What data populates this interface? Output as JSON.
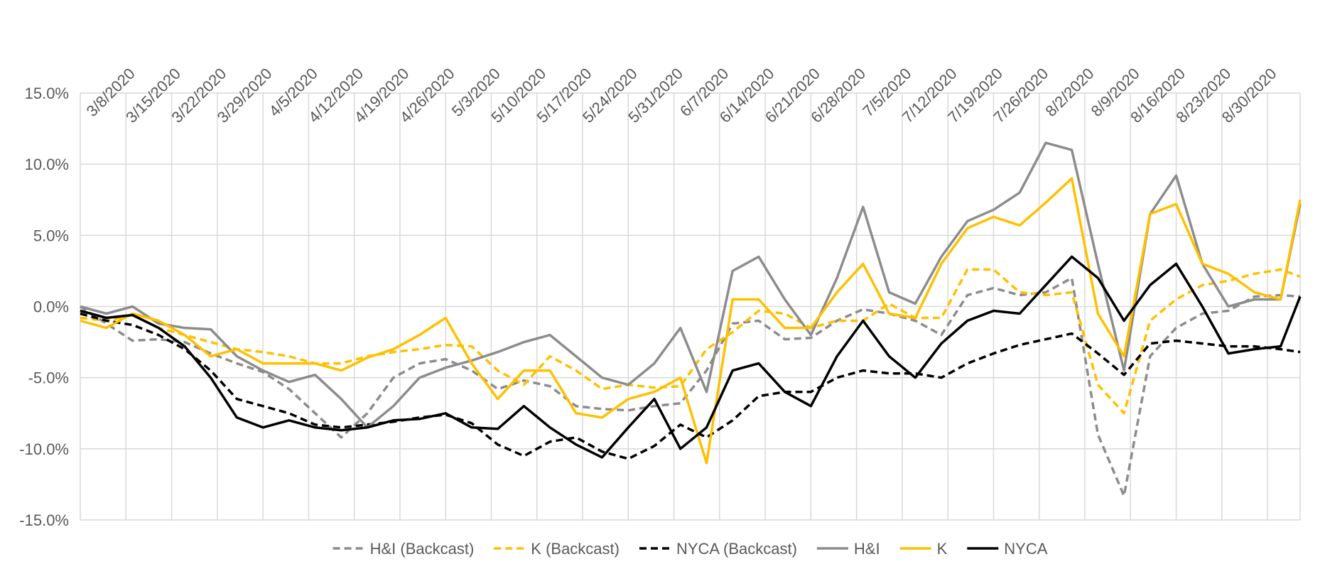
{
  "chart_data": {
    "type": "line",
    "x": [
      "3/1/2020",
      "3/5/2020",
      "3/9/2020",
      "3/13/2020",
      "3/17/2020",
      "3/21/2020",
      "3/25/2020",
      "3/29/2020",
      "4/2/2020",
      "4/6/2020",
      "4/10/2020",
      "4/14/2020",
      "4/18/2020",
      "4/22/2020",
      "4/26/2020",
      "4/30/2020",
      "5/4/2020",
      "5/8/2020",
      "5/12/2020",
      "5/16/2020",
      "5/20/2020",
      "5/24/2020",
      "5/28/2020",
      "6/1/2020",
      "6/5/2020",
      "6/9/2020",
      "6/13/2020",
      "6/17/2020",
      "6/21/2020",
      "6/25/2020",
      "6/29/2020",
      "7/3/2020",
      "7/7/2020",
      "7/11/2020",
      "7/15/2020",
      "7/19/2020",
      "7/23/2020",
      "7/27/2020",
      "7/31/2020",
      "8/4/2020",
      "8/8/2020",
      "8/12/2020",
      "8/16/2020",
      "8/20/2020",
      "8/24/2020",
      "8/28/2020",
      "9/1/2020",
      "9/4/2020"
    ],
    "xlim": [
      "3/1/2020",
      "9/4/2020"
    ],
    "xticks": [
      "3/8/2020",
      "3/15/2020",
      "3/22/2020",
      "3/29/2020",
      "4/5/2020",
      "4/12/2020",
      "4/19/2020",
      "4/26/2020",
      "5/3/2020",
      "5/10/2020",
      "5/17/2020",
      "5/24/2020",
      "5/31/2020",
      "6/7/2020",
      "6/14/2020",
      "6/21/2020",
      "6/28/2020",
      "7/5/2020",
      "7/12/2020",
      "7/19/2020",
      "7/26/2020",
      "8/2/2020",
      "8/9/2020",
      "8/16/2020",
      "8/23/2020",
      "8/30/2020"
    ],
    "ylim": [
      -15,
      15
    ],
    "yticks": [
      {
        "value": -15,
        "label": "-15.0%"
      },
      {
        "value": -10,
        "label": "-10.0%"
      },
      {
        "value": -5,
        "label": "-5.0%"
      },
      {
        "value": 0,
        "label": "0.0%"
      },
      {
        "value": 5,
        "label": "5.0%"
      },
      {
        "value": 10,
        "label": "10.0%"
      },
      {
        "value": 15,
        "label": "15.0%"
      }
    ],
    "grid": true,
    "legend": "bottom",
    "series": [
      {
        "name": "H&I (Backcast)",
        "color": "#8c8c8c",
        "dashed": true,
        "values": [
          0,
          -1.2,
          -2.4,
          -2.3,
          -2.5,
          -3.3,
          -4.0,
          -4.6,
          -5.8,
          -7.5,
          -9.2,
          -7.5,
          -5.0,
          -4.0,
          -3.7,
          -4.5,
          -5.8,
          -5.2,
          -5.6,
          -7.0,
          -7.2,
          -7.3,
          -7.0,
          -6.8,
          -4.5,
          -1.2,
          -1.0,
          -2.3,
          -2.2,
          -1.0,
          -0.2,
          -0.5,
          -1.0,
          -2.0,
          0.8,
          1.3,
          0.8,
          1.0,
          2.0,
          -9.0,
          -13.3,
          -3.5,
          -1.5,
          -0.5,
          -0.3,
          0.7,
          0.8,
          0.7
        ]
      },
      {
        "name": "K (Backcast)",
        "color": "#ffc000",
        "dashed": true,
        "values": [
          -0.8,
          -1.0,
          -0.6,
          -1.5,
          -2.0,
          -2.5,
          -3.0,
          -3.2,
          -3.5,
          -4.0,
          -4.0,
          -3.5,
          -3.2,
          -3.0,
          -2.7,
          -2.8,
          -4.5,
          -5.5,
          -3.5,
          -4.5,
          -5.8,
          -5.5,
          -5.7,
          -5.6,
          -3.0,
          -1.8,
          -0.3,
          -0.5,
          -1.5,
          -1.0,
          -1.0,
          0.2,
          -0.8,
          -0.8,
          2.6,
          2.6,
          1.0,
          0.8,
          1.0,
          -5.5,
          -7.5,
          -1.0,
          0.5,
          1.5,
          1.8,
          2.3,
          2.6,
          2.1
        ]
      },
      {
        "name": "NYCA (Backcast)",
        "color": "#000000",
        "dashed": true,
        "values": [
          -0.5,
          -1.0,
          -1.3,
          -2.0,
          -3.0,
          -4.5,
          -6.5,
          -7.0,
          -7.5,
          -8.3,
          -8.5,
          -8.3,
          -8.1,
          -7.8,
          -7.6,
          -8.2,
          -9.7,
          -10.5,
          -9.5,
          -9.2,
          -10.2,
          -10.7,
          -9.8,
          -8.3,
          -9.2,
          -8.0,
          -6.3,
          -6.0,
          -6.0,
          -5.0,
          -4.5,
          -4.7,
          -4.7,
          -5.0,
          -4.0,
          -3.3,
          -2.7,
          -2.3,
          -1.9,
          -3.3,
          -4.8,
          -2.6,
          -2.4,
          -2.6,
          -2.8,
          -2.8,
          -3.0,
          -3.2
        ]
      },
      {
        "name": "H&I",
        "color": "#8c8c8c",
        "dashed": false,
        "values": [
          0,
          -0.5,
          0,
          -1.2,
          -1.5,
          -1.6,
          -3.5,
          -4.5,
          -5.3,
          -4.8,
          -6.5,
          -8.5,
          -7.0,
          -5.0,
          -4.3,
          -3.8,
          -3.2,
          -2.5,
          -2.0,
          -3.5,
          -5.0,
          -5.5,
          -4.0,
          -1.5,
          -6.0,
          2.5,
          3.5,
          0.5,
          -2.0,
          2.0,
          7.0,
          1.0,
          0.2,
          3.5,
          6.0,
          6.8,
          8.0,
          11.5,
          11.0,
          3.0,
          -4.5,
          6.5,
          9.2,
          3.0,
          0,
          0.5,
          0.5,
          7.2
        ]
      },
      {
        "name": "K",
        "color": "#ffc000",
        "dashed": false,
        "values": [
          -1,
          -1.5,
          -0.5,
          -1.0,
          -2.0,
          -3.5,
          -3.0,
          -4.0,
          -4.0,
          -4.0,
          -4.5,
          -3.6,
          -3.0,
          -2.0,
          -0.8,
          -4.0,
          -6.5,
          -4.5,
          -4.5,
          -7.5,
          -7.8,
          -6.5,
          -6.0,
          -5.0,
          -11.0,
          0.5,
          0.5,
          -1.5,
          -1.5,
          1.0,
          3.0,
          -0.5,
          -0.8,
          3.0,
          5.5,
          6.3,
          5.7,
          7.3,
          9.0,
          -0.5,
          -3.5,
          6.5,
          7.2,
          3.0,
          2.3,
          1.0,
          0.5,
          7.5
        ]
      },
      {
        "name": "NYCA",
        "color": "#000000",
        "dashed": false,
        "values": [
          -0.3,
          -0.8,
          -0.6,
          -1.5,
          -2.8,
          -5.0,
          -7.8,
          -8.5,
          -8.0,
          -8.5,
          -8.7,
          -8.5,
          -8.0,
          -7.9,
          -7.5,
          -8.5,
          -8.6,
          -7.0,
          -8.5,
          -9.7,
          -10.6,
          -8.5,
          -6.5,
          -10.0,
          -8.5,
          -4.5,
          -4.0,
          -6.0,
          -7.0,
          -3.5,
          -1.0,
          -3.5,
          -5.0,
          -2.6,
          -1.0,
          -0.3,
          -0.5,
          1.5,
          3.5,
          2.0,
          -1.0,
          1.5,
          3.0,
          0.0,
          -3.3,
          -3.0,
          -2.8,
          0.7
        ]
      }
    ]
  }
}
